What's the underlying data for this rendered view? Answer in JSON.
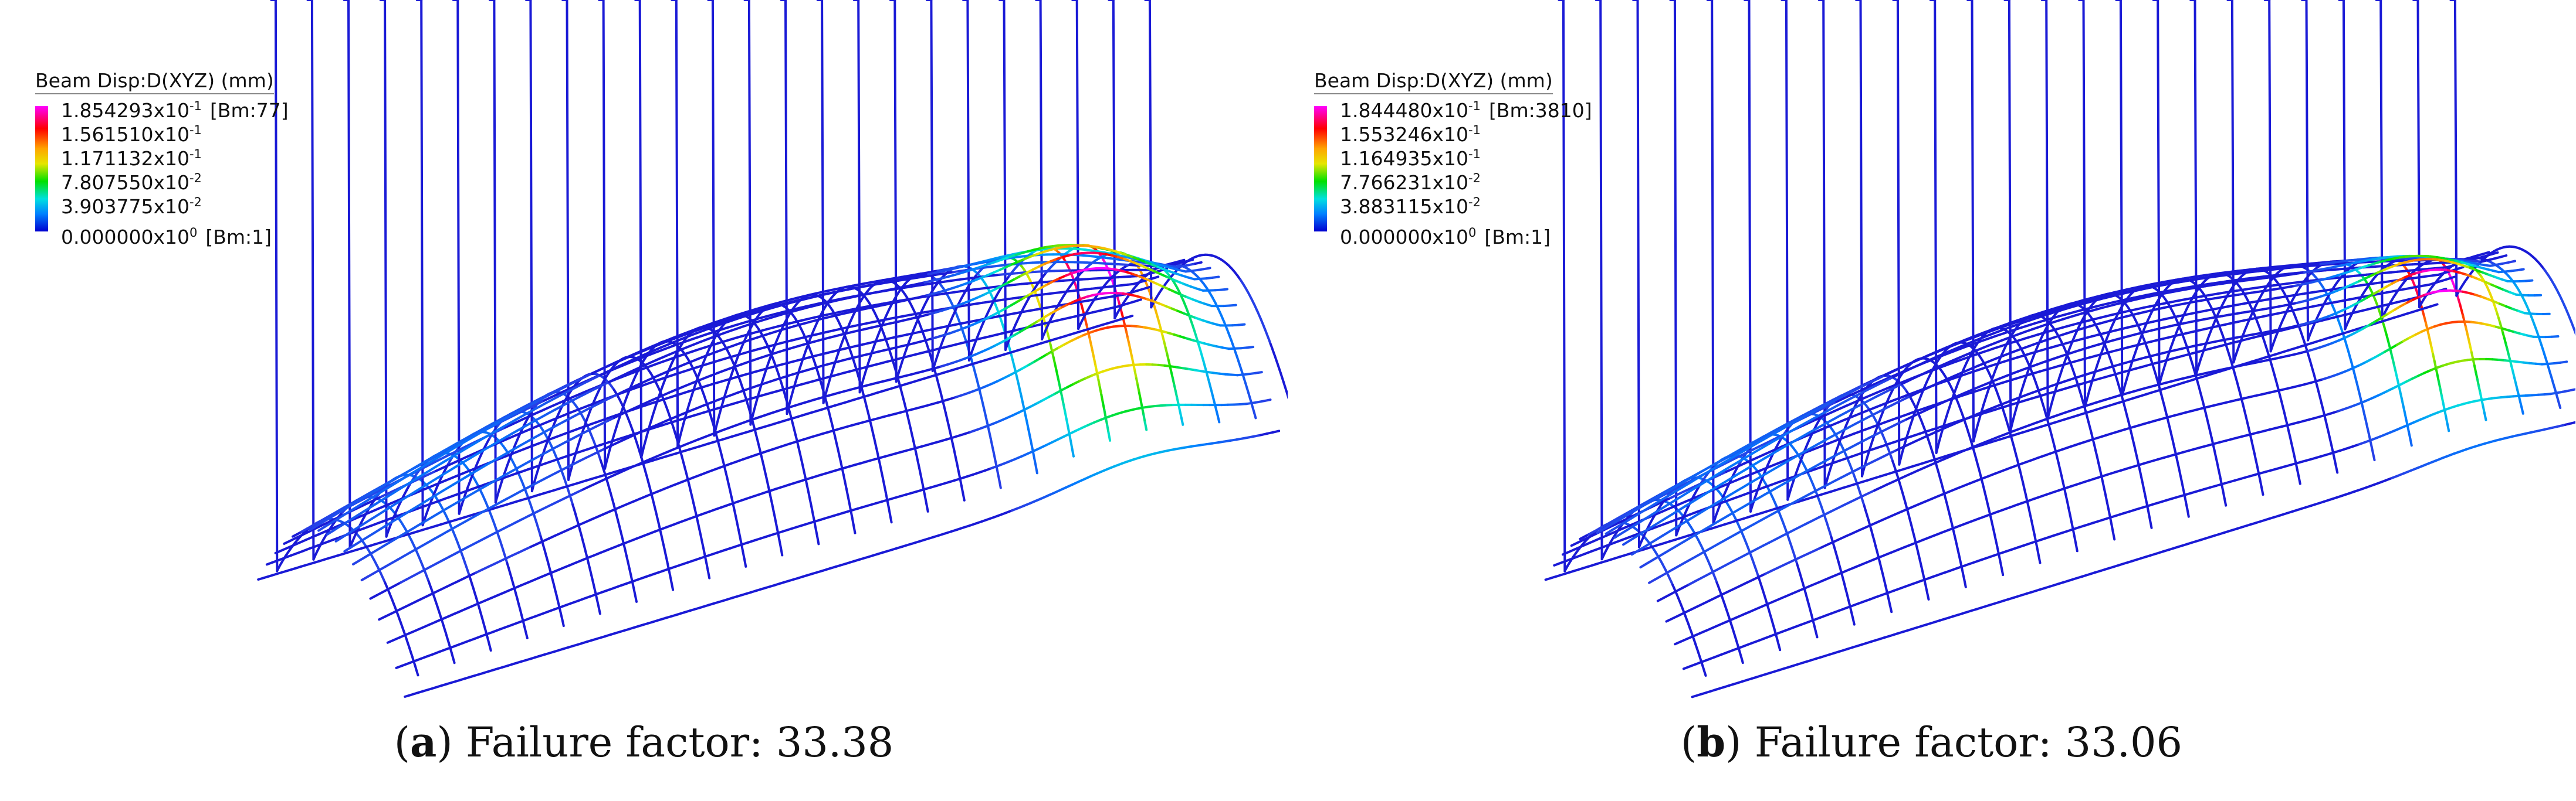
{
  "panels": [
    {
      "id": "a",
      "legend": {
        "title": "Beam Disp:D(XYZ)  (mm)",
        "entries": [
          {
            "mantissa": "1.854293x10",
            "exponent": "-1",
            "tag": "[Bm:77]"
          },
          {
            "mantissa": "1.561510x10",
            "exponent": "-1",
            "tag": ""
          },
          {
            "mantissa": "1.171132x10",
            "exponent": "-1",
            "tag": ""
          },
          {
            "mantissa": "7.807550x10",
            "exponent": "-2",
            "tag": ""
          },
          {
            "mantissa": "3.903775x10",
            "exponent": "-2",
            "tag": ""
          },
          {
            "mantissa": "0.000000x10",
            "exponent": "0",
            "tag": "[Bm:1]"
          }
        ]
      },
      "caption": {
        "letter": "a",
        "text": "Failure factor: 33.38"
      }
    },
    {
      "id": "b",
      "legend": {
        "title": "Beam Disp:D(XYZ)  (mm)",
        "entries": [
          {
            "mantissa": "1.844480x10",
            "exponent": "-1",
            "tag": "[Bm:3810]"
          },
          {
            "mantissa": "1.553246x10",
            "exponent": "-1",
            "tag": ""
          },
          {
            "mantissa": "1.164935x10",
            "exponent": "-1",
            "tag": ""
          },
          {
            "mantissa": "7.766231x10",
            "exponent": "-2",
            "tag": ""
          },
          {
            "mantissa": "3.883115x10",
            "exponent": "-2",
            "tag": ""
          },
          {
            "mantissa": "0.000000x10",
            "exponent": "0",
            "tag": "[Bm:1]"
          }
        ]
      },
      "caption": {
        "letter": "b",
        "text": "Failure factor: 33.06"
      }
    }
  ],
  "colors": {
    "base_mesh": "#1a1ad6",
    "scale": [
      "#ff00ff",
      "#ff0000",
      "#ffa500",
      "#e6e600",
      "#00e000",
      "#00e0e0",
      "#0080ff",
      "#0000d0"
    ]
  }
}
